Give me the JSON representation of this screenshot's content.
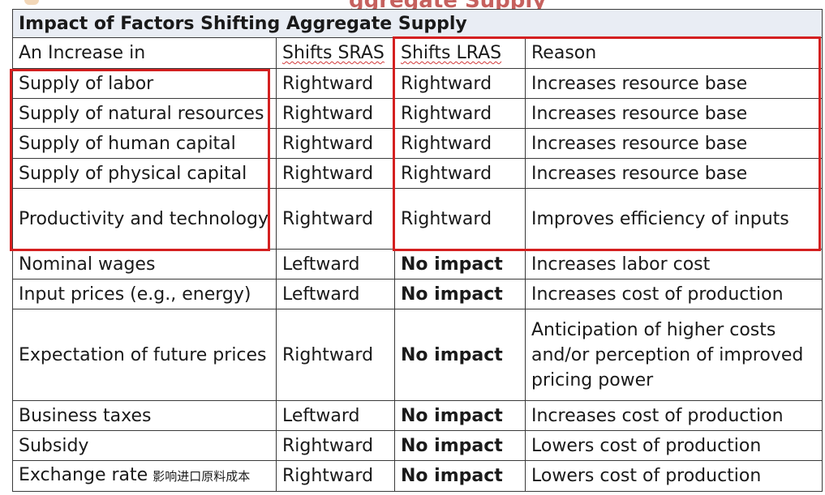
{
  "slide": {
    "cut_title_fragment": "ggregate Supply"
  },
  "table": {
    "title": "Impact of Factors Shifting Aggregate Supply",
    "headers": [
      "An Increase in",
      "Shifts SRAS",
      "Shifts LRAS",
      "Reason"
    ],
    "rows": [
      {
        "factor": "Supply of labor",
        "sras": "Rightward",
        "lras": "Rightward",
        "reason": "Increases resource base"
      },
      {
        "factor": "Supply of natural resources",
        "sras": "Rightward",
        "lras": "Rightward",
        "reason": "Increases resource base"
      },
      {
        "factor": "Supply of human capital",
        "sras": "Rightward",
        "lras": "Rightward",
        "reason": "Increases resource base"
      },
      {
        "factor": "Supply of physical capital",
        "sras": "Rightward",
        "lras": "Rightward",
        "reason": "Increases resource base"
      },
      {
        "factor": "Productivity and technology",
        "sras": "Rightward",
        "lras": "Rightward",
        "reason": "Improves efficiency of inputs"
      },
      {
        "factor": "Nominal wages",
        "sras": "Leftward",
        "lras": "No impact",
        "reason": "Increases labor cost"
      },
      {
        "factor": "Input prices (e.g., energy)",
        "sras": "Leftward",
        "lras": "No impact",
        "reason": "Increases cost of production"
      },
      {
        "factor": "Expectation of future prices",
        "sras": "Rightward",
        "lras": "No impact",
        "reason": "Anticipation of higher costs and/or perception of improved pricing power"
      },
      {
        "factor": "Business taxes",
        "sras": "Leftward",
        "lras": "No impact",
        "reason": "Increases cost of production"
      },
      {
        "factor": "Subsidy",
        "sras": "Rightward",
        "lras": "No impact",
        "reason": "Lowers cost of production"
      },
      {
        "factor": "Exchange rate",
        "factor_note": "影响进口原料成本",
        "sras": "Rightward",
        "lras": "No impact",
        "reason": "Lowers cost of production"
      }
    ]
  },
  "annotations": {
    "highlight_color": "#d42020"
  }
}
